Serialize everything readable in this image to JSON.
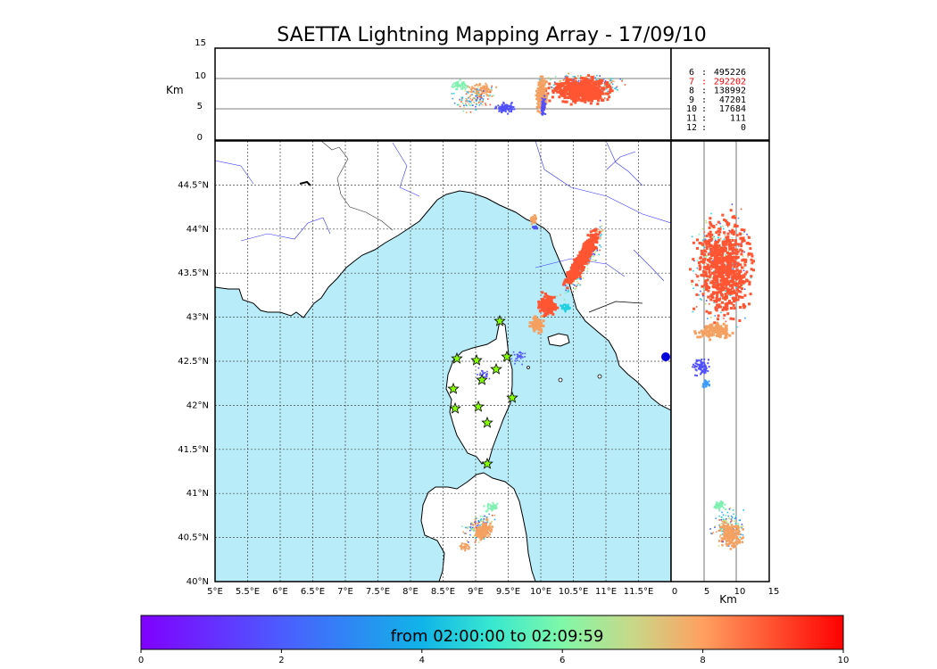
{
  "title": "SAETTA Lightning Mapping Array - 17/09/10",
  "top_panel": {
    "y_unit": "Km",
    "y_ticks": [
      "0",
      "5",
      "10",
      "15"
    ]
  },
  "right_panel": {
    "x_unit": "Km",
    "x_ticks": [
      "0",
      "5",
      "10",
      "15"
    ]
  },
  "map": {
    "lon_labels": [
      "5°E",
      "5.5°E",
      "6°E",
      "6.5°E",
      "7°E",
      "7.5°E",
      "8°E",
      "8.5°E",
      "9°E",
      "9.5°E",
      "10°E",
      "10.5°E",
      "11°E",
      "11.5°E"
    ],
    "lat_labels": [
      "40°N",
      "40.5°N",
      "41°N",
      "41.5°N",
      "42°N",
      "42.5°N",
      "43°N",
      "43.5°N",
      "44°N",
      "44.5°N"
    ],
    "sea_color": "#b8ecf8",
    "land_color": "#ffffff"
  },
  "station_counts": [
    {
      "stations": "6",
      "sep": ":",
      "count": "495226",
      "highlight": false
    },
    {
      "stations": "7",
      "sep": ":",
      "count": "292202",
      "highlight": true
    },
    {
      "stations": "8",
      "sep": ":",
      "count": "138992",
      "highlight": false
    },
    {
      "stations": "9",
      "sep": ":",
      "count": "47201",
      "highlight": false
    },
    {
      "stations": "10",
      "sep": ":",
      "count": "17684",
      "highlight": false
    },
    {
      "stations": "11",
      "sep": ":",
      "count": "111",
      "highlight": false
    },
    {
      "stations": "12",
      "sep": ":",
      "count": "0",
      "highlight": false
    }
  ],
  "colorbar": {
    "label": "from 02:00:00 to 02:09:59",
    "ticks": [
      "0",
      "2",
      "4",
      "6",
      "8",
      "10"
    ],
    "colormap": "rainbow"
  },
  "colors": {
    "late": "#ff5533",
    "mid_late": "#f4a060",
    "mid": "#80f0b0",
    "early": "#5050ff",
    "station_marker": "#88ff00",
    "highlight_text": "#ff0000"
  }
}
